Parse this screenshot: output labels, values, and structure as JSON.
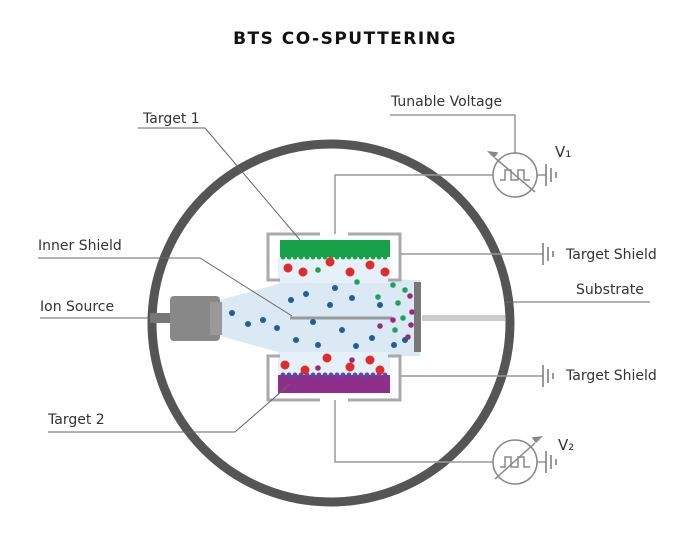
{
  "header": {
    "title": "BTS CO-SPUTTERING"
  },
  "labels": {
    "target_1": "Target 1",
    "tunable_voltage": "Tunable Voltage",
    "v1": "V₁",
    "inner_shield": "Inner Shield",
    "target_shield_top": "Target Shield",
    "substrate": "Substrate",
    "ion_source": "Ion Source",
    "target_shield_bottom": "Target Shield",
    "target_2": "Target 2",
    "v2": "V₂"
  }
}
